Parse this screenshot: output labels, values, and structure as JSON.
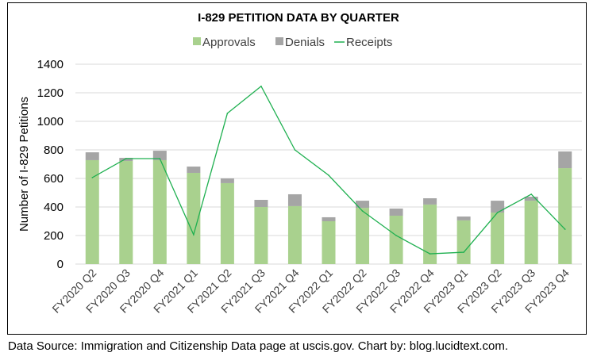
{
  "chart_data": {
    "type": "bar",
    "stacked": true,
    "title": "I-829 PETITION DATA BY QUARTER",
    "xlabel": "",
    "ylabel": "Number of I-829 Petitions",
    "ylim": [
      0,
      1400
    ],
    "yticks": [
      0,
      200,
      400,
      600,
      800,
      1000,
      1200,
      1400
    ],
    "ytick_labels": [
      "0",
      "200",
      "400",
      "600",
      "800",
      "1000",
      "1200",
      "1400"
    ],
    "grid": true,
    "legend_position": "top",
    "categories": [
      "FY2020 Q2",
      "FY2020 Q3",
      "FY2020 Q4",
      "FY2021 Q1",
      "FY2021 Q2",
      "FY2021 Q3",
      "FY2021 Q4",
      "FY2022 Q1",
      "FY2022 Q2",
      "FY2022 Q3",
      "FY2022 Q4",
      "FY2023 Q1",
      "FY2023 Q2",
      "FY2023 Q3",
      "FY2023 Q4"
    ],
    "series": [
      {
        "name": "Approvals",
        "type": "bar",
        "color": "#a9d18e",
        "values": [
          728,
          722,
          728,
          639,
          567,
          400,
          406,
          300,
          394,
          339,
          417,
          306,
          361,
          444,
          672
        ]
      },
      {
        "name": "Denials",
        "type": "bar",
        "color": "#a5a5a5",
        "values": [
          55,
          22,
          66,
          44,
          33,
          50,
          83,
          28,
          50,
          50,
          44,
          27,
          83,
          28,
          117
        ]
      },
      {
        "name": "Receipts",
        "type": "line",
        "color": "#1fb050",
        "values": [
          606,
          739,
          739,
          206,
          1056,
          1246,
          800,
          622,
          372,
          200,
          72,
          83,
          361,
          489,
          244
        ]
      }
    ]
  },
  "footer": "Data Source: Immigration and Citizenship Data page at uscis.gov. Chart by: blog.lucidtext.com."
}
